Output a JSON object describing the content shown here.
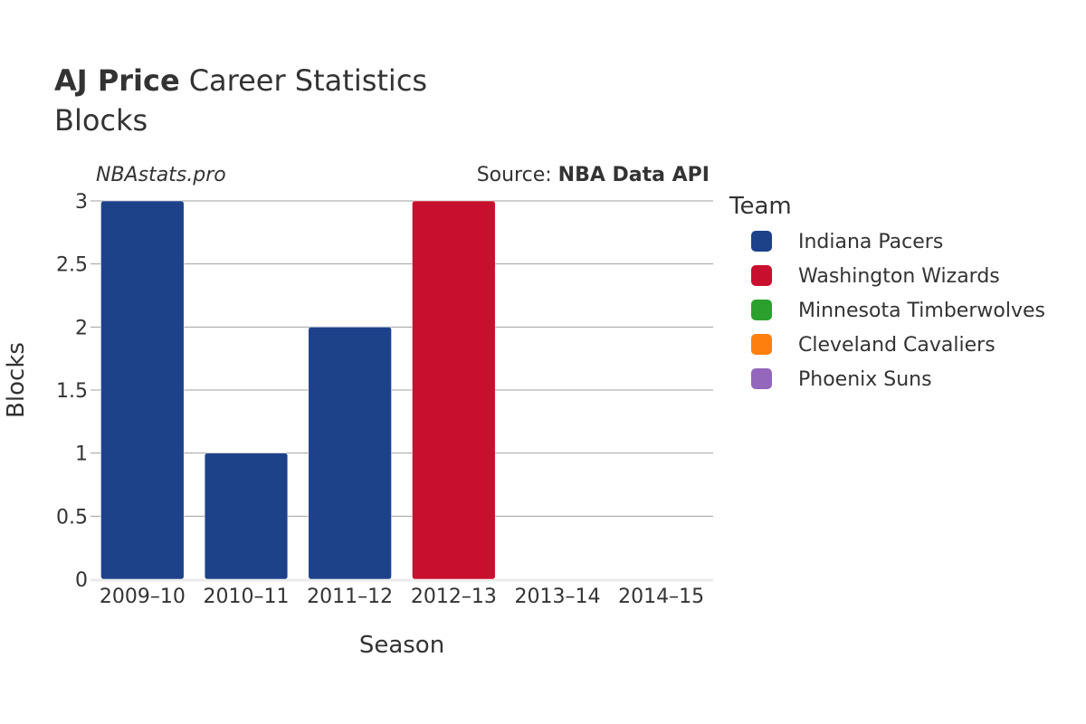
{
  "header": {
    "title_bold": "AJ Price",
    "title_rest": "Career Statistics",
    "subtitle": "Blocks"
  },
  "credits": {
    "site": "NBAstats.pro",
    "source_prefix": "Source: ",
    "source_name": "NBA Data API"
  },
  "legend": {
    "title": "Team",
    "items": [
      {
        "label": "Indiana Pacers",
        "color": "#1d428a"
      },
      {
        "label": "Washington Wizards",
        "color": "#c8102e"
      },
      {
        "label": "Minnesota Timberwolves",
        "color": "#2ca02c"
      },
      {
        "label": "Cleveland Cavaliers",
        "color": "#ff7f0e"
      },
      {
        "label": "Phoenix Suns",
        "color": "#9467bd"
      }
    ]
  },
  "chart_data": {
    "type": "bar",
    "title": "AJ Price Career Statistics",
    "subtitle": "Blocks",
    "xlabel": "Season",
    "ylabel": "Blocks",
    "ylim": [
      0,
      3
    ],
    "yticks": [
      0,
      0.5,
      1,
      1.5,
      2,
      2.5,
      3
    ],
    "ytick_labels": [
      "0",
      "0.5",
      "1",
      "1.5",
      "2",
      "2.5",
      "3"
    ],
    "categories": [
      "2009–10",
      "2010–11",
      "2011–12",
      "2012–13",
      "2013–14",
      "2014–15"
    ],
    "bars": [
      {
        "season": "2009–10",
        "team": "Indiana Pacers",
        "value": 3
      },
      {
        "season": "2010–11",
        "team": "Indiana Pacers",
        "value": 1
      },
      {
        "season": "2011–12",
        "team": "Indiana Pacers",
        "value": 2
      },
      {
        "season": "2012–13",
        "team": "Washington Wizards",
        "value": 3
      },
      {
        "season": "2013–14",
        "team": "Minnesota Timberwolves",
        "value": 0
      },
      {
        "season": "2014–15",
        "team": "Cleveland Cavaliers",
        "value": 0
      },
      {
        "season": "2014–15",
        "team": "Phoenix Suns",
        "value": 0
      }
    ]
  }
}
